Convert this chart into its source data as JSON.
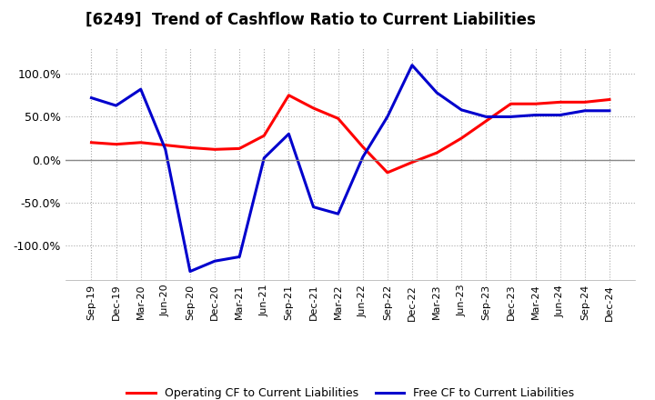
{
  "title": "[6249]  Trend of Cashflow Ratio to Current Liabilities",
  "x_labels": [
    "Sep-19",
    "Dec-19",
    "Mar-20",
    "Jun-20",
    "Sep-20",
    "Dec-20",
    "Mar-21",
    "Jun-21",
    "Sep-21",
    "Dec-21",
    "Mar-22",
    "Jun-22",
    "Sep-22",
    "Dec-22",
    "Mar-23",
    "Jun-23",
    "Sep-23",
    "Dec-23",
    "Mar-24",
    "Jun-24",
    "Sep-24",
    "Dec-24"
  ],
  "operating_cf": [
    20.0,
    18.0,
    20.0,
    17.0,
    14.0,
    12.0,
    13.0,
    28.0,
    75.0,
    60.0,
    48.0,
    15.0,
    -15.0,
    -3.0,
    8.0,
    25.0,
    45.0,
    65.0,
    65.0,
    67.0,
    67.0,
    70.0
  ],
  "free_cf": [
    72.0,
    63.0,
    82.0,
    12.0,
    -130.0,
    -118.0,
    -113.0,
    2.0,
    30.0,
    -55.0,
    -63.0,
    3.0,
    50.0,
    110.0,
    78.0,
    58.0,
    50.0,
    50.0,
    52.0,
    52.0,
    57.0,
    57.0
  ],
  "operating_color": "#FF0000",
  "free_color": "#0000CD",
  "background_color": "#FFFFFF",
  "grid_color": "#AAAAAA",
  "ylim": [
    -140,
    130
  ],
  "yticks": [
    -100.0,
    -50.0,
    0.0,
    50.0,
    100.0
  ],
  "legend_op": "Operating CF to Current Liabilities",
  "legend_free": "Free CF to Current Liabilities",
  "line_width": 2.2,
  "title_fontsize": 12,
  "tick_fontsize": 8,
  "ytick_fontsize": 9
}
